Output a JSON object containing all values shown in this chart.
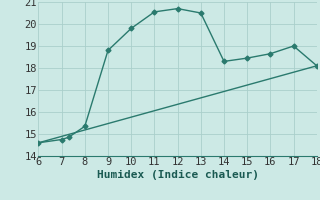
{
  "humidex_x": [
    6,
    7,
    7.3,
    8,
    9,
    10,
    11,
    12,
    13,
    14,
    15,
    16,
    17,
    18
  ],
  "humidex_y": [
    14.6,
    14.75,
    14.85,
    15.35,
    18.8,
    19.8,
    20.55,
    20.7,
    20.5,
    18.3,
    18.45,
    18.65,
    19.0,
    18.1
  ],
  "line2_x": [
    6,
    18
  ],
  "line2_y": [
    14.6,
    18.1
  ],
  "bg_color": "#cce9e5",
  "line_color": "#2a7a6e",
  "grid_color": "#aacfcb",
  "xlabel": "Humidex (Indice chaleur)",
  "xlim": [
    6,
    18
  ],
  "ylim": [
    14,
    21
  ],
  "xticks": [
    6,
    7,
    8,
    9,
    10,
    11,
    12,
    13,
    14,
    15,
    16,
    17,
    18
  ],
  "yticks": [
    14,
    15,
    16,
    17,
    18,
    19,
    20,
    21
  ],
  "tick_fontsize": 7.5,
  "xlabel_fontsize": 8,
  "marker": "D",
  "markersize": 2.5,
  "linewidth": 1.0
}
